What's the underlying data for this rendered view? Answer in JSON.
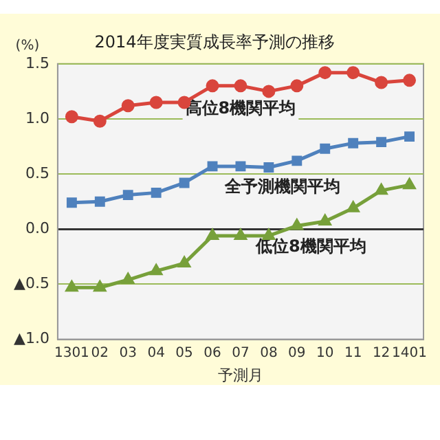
{
  "chart_data": {
    "type": "line",
    "title": "2014年度実質成長率予測の推移",
    "ylabel": "(%)",
    "xlabel": "予測月",
    "categories": [
      "1301",
      "02",
      "03",
      "04",
      "05",
      "06",
      "07",
      "08",
      "09",
      "10",
      "11",
      "12",
      "1401"
    ],
    "series": [
      {
        "name": "高位8機関平均",
        "color": "#d9453c",
        "marker": "circle",
        "values": [
          1.02,
          0.98,
          1.12,
          1.15,
          1.15,
          1.3,
          1.3,
          1.25,
          1.3,
          1.42,
          1.42,
          1.33,
          1.35
        ]
      },
      {
        "name": "全予測機関平均",
        "color": "#4f81bd",
        "marker": "square",
        "values": [
          0.24,
          0.25,
          0.31,
          0.33,
          0.42,
          0.57,
          0.57,
          0.56,
          0.62,
          0.73,
          0.78,
          0.79,
          0.84
        ]
      },
      {
        "name": "低位8機関平均",
        "color": "#77a03a",
        "marker": "triangle",
        "values": [
          -0.53,
          -0.53,
          -0.46,
          -0.38,
          -0.31,
          -0.06,
          -0.06,
          -0.06,
          0.03,
          0.07,
          0.19,
          0.35,
          0.4
        ]
      }
    ],
    "ylim": [
      -1.0,
      1.5
    ],
    "yticks": [
      {
        "value": -1.0,
        "label": "▲1.0"
      },
      {
        "value": -0.5,
        "label": "▲0.5"
      },
      {
        "value": 0,
        "label": "0.0"
      },
      {
        "value": 0.5,
        "label": "0.5"
      },
      {
        "value": 1.0,
        "label": "1.0"
      },
      {
        "value": 1.5,
        "label": "1.5"
      }
    ],
    "grid": "y",
    "legend": false,
    "line_style": "solid"
  }
}
